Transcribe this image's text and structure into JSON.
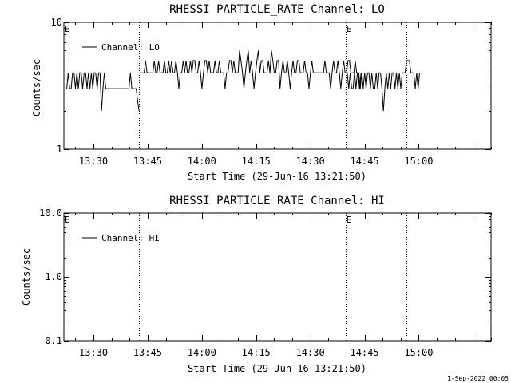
{
  "footer": {
    "timestamp": "1-Sep-2022 00:05"
  },
  "chart_data": [
    {
      "type": "line",
      "title": "RHESSI PARTICLE_RATE Channel: LO",
      "xlabel": "Start Time (29-Jun-16 13:21:50)",
      "ylabel": "Counts/sec",
      "yscale": "log",
      "ylim": [
        1,
        10
      ],
      "xlim_min": [
        0,
        118.17
      ],
      "ytick_values": [
        1,
        10
      ],
      "ytick_labels": [
        "1",
        "10"
      ],
      "xtick_values_min": [
        8.17,
        23.17,
        38.17,
        53.17,
        68.17,
        83.17,
        98.17,
        113.17
      ],
      "xtick_labels": [
        "13:30",
        "13:45",
        "14:00",
        "14:15",
        "14:30",
        "14:45",
        "15:00"
      ],
      "xtick_label_values_min": [
        8.17,
        23.17,
        38.17,
        53.17,
        68.17,
        83.17,
        98.17
      ],
      "event_lines_min": [
        20.7,
        77.9,
        94.8
      ],
      "event_markers": [
        {
          "label": "E",
          "at_min": 0
        },
        {
          "label": "E",
          "at_min": 77.9
        }
      ],
      "legend": {
        "placement": "top-left",
        "entries": [
          "Channel: LO"
        ]
      },
      "series": [
        {
          "name": "Channel: LO",
          "segments": [
            {
              "x_start_min": 0.8,
              "x_step_min": 0.4,
              "values": [
                3,
                4,
                3,
                3,
                4,
                4,
                3,
                4,
                3,
                4,
                4,
                3,
                4,
                4,
                3,
                4,
                3,
                4,
                3,
                4,
                4,
                3,
                4,
                4,
                2,
                3,
                4,
                3,
                3,
                3,
                3,
                3,
                3,
                3,
                3,
                3,
                3,
                3,
                3,
                3,
                3,
                3,
                3,
                3,
                4,
                3,
                3,
                3,
                3,
                2.4,
                2
              ]
            },
            {
              "x_start_min": 21.0,
              "x_step_min": 0.4,
              "values": [
                4,
                4,
                4,
                4,
                5,
                4,
                4,
                4,
                4,
                4,
                5,
                4,
                4,
                5,
                4,
                4,
                4,
                5,
                4,
                4,
                5,
                4,
                5,
                4,
                4,
                5,
                4,
                3,
                4,
                4,
                5,
                4,
                5,
                4,
                4,
                5,
                4,
                5,
                5,
                4,
                4,
                5,
                4,
                3,
                4,
                5,
                5,
                4,
                5,
                4,
                4,
                4,
                5,
                4,
                4,
                5,
                4,
                4,
                4,
                3,
                4,
                4,
                5,
                5,
                4,
                5,
                4,
                4,
                4,
                6,
                5,
                4,
                3,
                4,
                5,
                6,
                4,
                5,
                4,
                3,
                4,
                5,
                6,
                4,
                5,
                5,
                4,
                4,
                4,
                5,
                4,
                6,
                5,
                4,
                4,
                5,
                5,
                3,
                4,
                5,
                4,
                4,
                5,
                4,
                3,
                4,
                5,
                4,
                4,
                5,
                5,
                4,
                4,
                4,
                5,
                4,
                4,
                3,
                4,
                5,
                4,
                4,
                4,
                4,
                4,
                4,
                4,
                4,
                5,
                4,
                4,
                4,
                3,
                4,
                5,
                4,
                4,
                5,
                4,
                3,
                4,
                5,
                4,
                4,
                5,
                5,
                4,
                4,
                4,
                5,
                4,
                4,
                3,
                4
              ]
            },
            {
              "x_start_min": 78.0,
              "x_step_min": 0.4,
              "values": [
                4,
                4,
                3,
                4,
                3,
                3,
                4,
                3,
                4,
                4,
                3,
                4,
                3,
                4,
                3,
                4,
                4,
                3,
                4,
                3,
                3,
                4,
                3,
                4,
                4,
                3,
                2,
                3,
                4,
                3,
                4,
                3,
                4,
                4,
                3,
                4,
                3,
                4,
                3,
                4,
                4,
                4,
                5,
                5,
                5,
                4,
                4,
                4,
                3,
                4,
                3,
                4
              ]
            }
          ]
        }
      ]
    },
    {
      "type": "line",
      "title": "RHESSI PARTICLE_RATE Channel: HI",
      "xlabel": "Start Time (29-Jun-16 13:21:50)",
      "ylabel": "Counts/sec",
      "yscale": "log",
      "ylim": [
        0.1,
        10
      ],
      "xlim_min": [
        0,
        118.17
      ],
      "ytick_values": [
        0.1,
        1,
        10
      ],
      "ytick_labels": [
        "0.1",
        "1.0",
        "10.0"
      ],
      "xtick_values_min": [
        8.17,
        23.17,
        38.17,
        53.17,
        68.17,
        83.17,
        98.17,
        113.17
      ],
      "xtick_labels": [
        "13:30",
        "13:45",
        "14:00",
        "14:15",
        "14:30",
        "14:45",
        "15:00"
      ],
      "xtick_label_values_min": [
        8.17,
        23.17,
        38.17,
        53.17,
        68.17,
        83.17,
        98.17
      ],
      "event_lines_min": [
        20.7,
        77.9,
        94.8
      ],
      "event_markers": [
        {
          "label": "E",
          "at_min": 0
        },
        {
          "label": "E",
          "at_min": 77.9
        }
      ],
      "legend": {
        "placement": "top-left",
        "entries": [
          "Channel: HI"
        ]
      },
      "series": [
        {
          "name": "Channel: HI",
          "segments": []
        }
      ]
    }
  ]
}
